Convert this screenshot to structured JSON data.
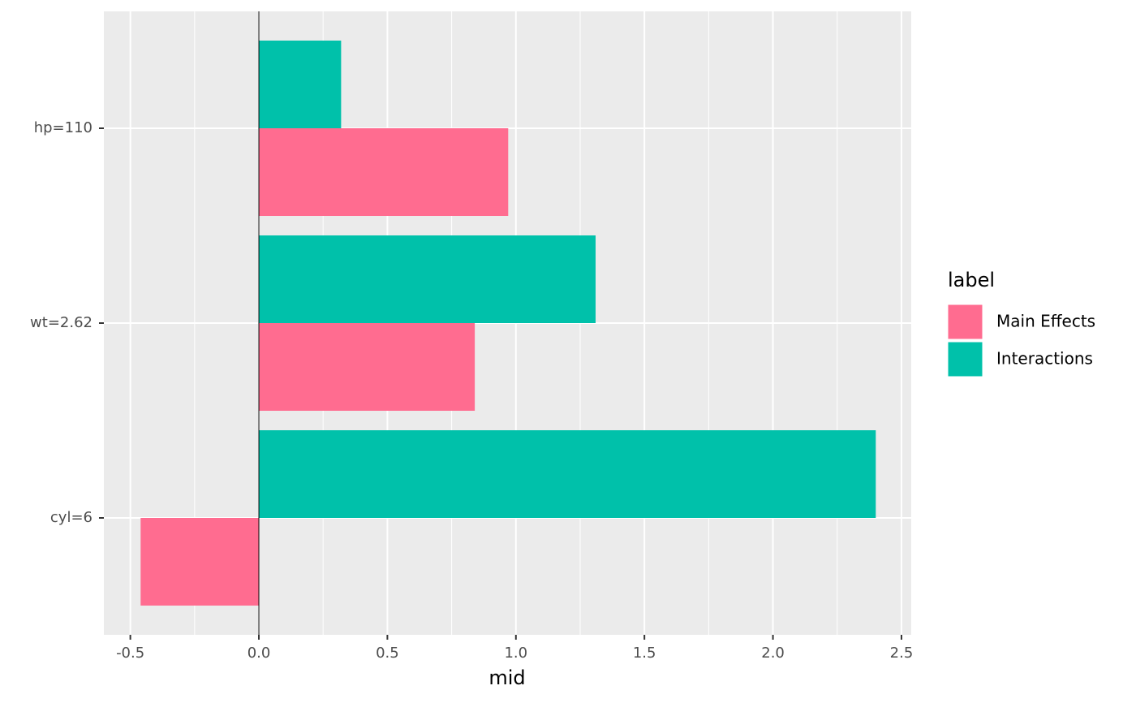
{
  "chart_data": {
    "type": "bar",
    "orientation": "horizontal",
    "x_label": "mid",
    "categories": [
      "cyl=6",
      "wt=2.62",
      "hp=110"
    ],
    "series": [
      {
        "name": "Main Effects",
        "color": "#FF6C90",
        "values": [
          -0.46,
          0.84,
          0.97
        ]
      },
      {
        "name": "Interactions",
        "color": "#00C1AA",
        "values": [
          2.4,
          1.31,
          0.32
        ]
      }
    ],
    "xlim": [
      -0.603,
      2.538
    ],
    "xticks": [
      -0.5,
      {
        "value": 0,
        "label": "0.0"
      },
      0.5,
      {
        "value": 1,
        "label": "1.0"
      },
      1.5,
      {
        "value": 2,
        "label": "2.0"
      },
      2.5
    ],
    "reference_line": 0,
    "legend_title": "label",
    "legend_position": "right",
    "grid": true
  }
}
